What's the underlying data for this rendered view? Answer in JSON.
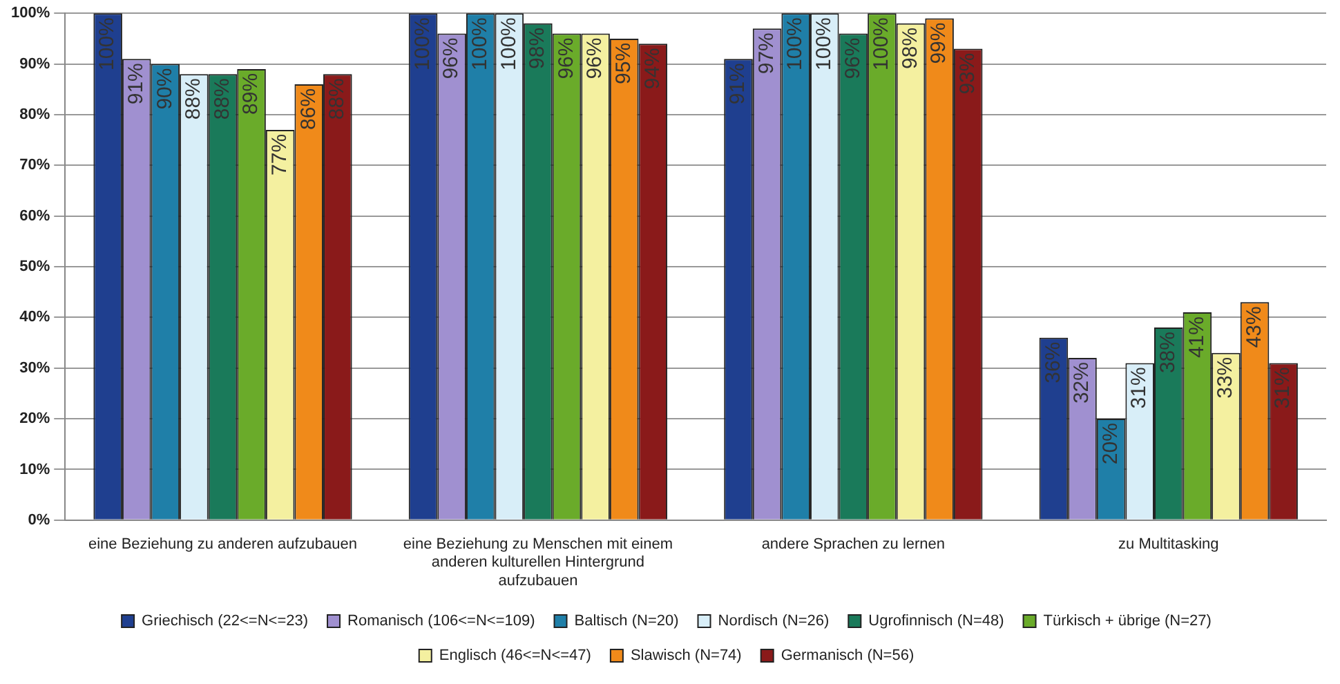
{
  "chart_data": {
    "type": "bar",
    "categories": [
      "eine Beziehung zu anderen aufzubauen",
      "eine Beziehung zu Menschen mit einem anderen kulturellen Hintergrund aufzubauen",
      "andere Sprachen zu lernen",
      "zu Multitasking"
    ],
    "series": [
      {
        "name": "Griechisch (22<=N<=23)",
        "color": "#1f3f8f",
        "values": [
          100,
          100,
          91,
          36
        ],
        "value_labels": [
          "100%",
          "100%",
          "91%",
          "36%"
        ]
      },
      {
        "name": "Romanisch (106<=N<=109)",
        "color": "#a090d0",
        "values": [
          91,
          96,
          97,
          32
        ],
        "value_labels": [
          "91%",
          "96%",
          "97%",
          "32%"
        ]
      },
      {
        "name": "Baltisch (N=20)",
        "color": "#1f7fa8",
        "values": [
          90,
          100,
          100,
          20
        ],
        "value_labels": [
          "90%",
          "100%",
          "100%",
          "20%"
        ]
      },
      {
        "name": "Nordisch (N=26)",
        "color": "#d8eef8",
        "values": [
          88,
          100,
          100,
          31
        ],
        "value_labels": [
          "88%",
          "100%",
          "100%",
          "31%"
        ]
      },
      {
        "name": "Ugrofinnisch (N=48)",
        "color": "#1a7a5a",
        "values": [
          88,
          98,
          96,
          38
        ],
        "value_labels": [
          "88%",
          "98%",
          "96%",
          "38%"
        ]
      },
      {
        "name": "Türkisch + übrige (N=27)",
        "color": "#6aab2a",
        "values": [
          89,
          96,
          100,
          41
        ],
        "value_labels": [
          "89%",
          "96%",
          "100%",
          "41%"
        ]
      },
      {
        "name": "Englisch (46<=N<=47)",
        "color": "#f4f0a0",
        "values": [
          77,
          96,
          98,
          33
        ],
        "value_labels": [
          "77%",
          "96%",
          "98%",
          "33%"
        ]
      },
      {
        "name": "Slawisch (N=74)",
        "color": "#f08a1a",
        "values": [
          86,
          95,
          99,
          43
        ],
        "value_labels": [
          "86%",
          "95%",
          "99%",
          "43%"
        ]
      },
      {
        "name": "Germanisch (N=56)",
        "color": "#8a1a1a",
        "values": [
          88,
          94,
          93,
          31
        ],
        "value_labels": [
          "88%",
          "94%",
          "93%",
          "31%"
        ]
      }
    ],
    "ylim": [
      0,
      100
    ],
    "yticks": [
      {
        "value": 0,
        "label": "0%"
      },
      {
        "value": 10,
        "label": "10%"
      },
      {
        "value": 20,
        "label": "20%"
      },
      {
        "value": 30,
        "label": "30%"
      },
      {
        "value": 40,
        "label": "40%"
      },
      {
        "value": 50,
        "label": "50%"
      },
      {
        "value": 60,
        "label": "60%"
      },
      {
        "value": 70,
        "label": "70%"
      },
      {
        "value": 80,
        "label": "80%"
      },
      {
        "value": 90,
        "label": "90%"
      },
      {
        "value": 100,
        "label": "100%"
      }
    ],
    "grid": "y",
    "legend": "bottom"
  }
}
